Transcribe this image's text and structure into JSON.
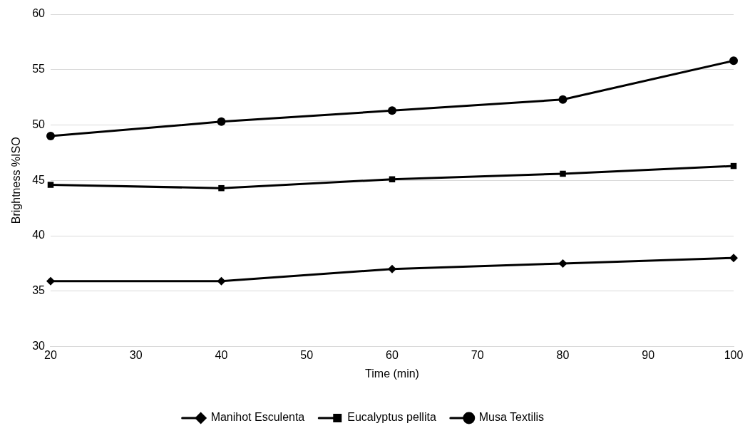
{
  "chart_data": {
    "type": "line",
    "xlabel": "Time (min)",
    "ylabel": "Brightness %ISO",
    "x": [
      20,
      40,
      60,
      80,
      100
    ],
    "series": [
      {
        "name": "Manihot Esculenta",
        "color": "#000000",
        "marker": "diamond",
        "values": [
          35.9,
          35.9,
          37.0,
          37.5,
          38.0
        ]
      },
      {
        "name": "Eucalyptus pellita",
        "color": "#000000",
        "marker": "square",
        "values": [
          44.6,
          44.3,
          45.1,
          45.6,
          46.3
        ]
      },
      {
        "name": "Musa Textilis",
        "color": "#000000",
        "marker": "circle",
        "values": [
          49.0,
          50.3,
          51.3,
          52.3,
          55.8
        ]
      }
    ],
    "xlim": [
      20,
      100
    ],
    "xticks": [
      20,
      30,
      40,
      50,
      60,
      70,
      80,
      90,
      100
    ],
    "ylim": [
      30,
      60
    ],
    "yticks": [
      30,
      35,
      40,
      45,
      50,
      55,
      60
    ],
    "grid": "y",
    "legend": "bottom",
    "line_style": "solid"
  }
}
